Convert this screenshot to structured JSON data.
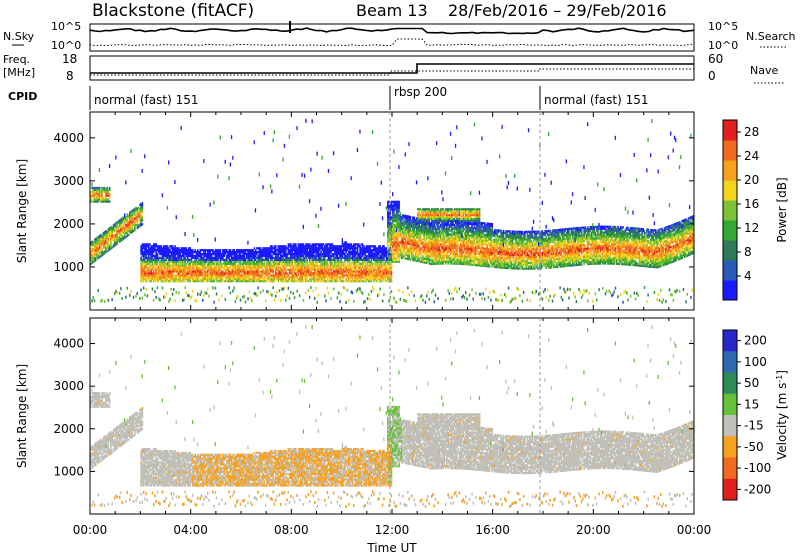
{
  "header": {
    "station": "Blackstone (fitACF)",
    "beam": "Beam 13",
    "date_range": "28/Feb/2016 – 29/Feb/2016"
  },
  "noise_panel": {
    "left_label": "N.Sky",
    "right_label": "N.Search",
    "left_ticks": [
      "10^5",
      "10^0"
    ],
    "right_ticks": [
      "10^5",
      "10^0"
    ]
  },
  "freq_panel": {
    "left_label_1": "Freq.",
    "left_label_2": "[MHz]",
    "right_label": "Nave",
    "left_ticks": [
      "18",
      "8"
    ],
    "right_ticks": [
      "60",
      "0"
    ]
  },
  "cpid_panel": {
    "label": "CPID",
    "segments": [
      {
        "start_h": 0,
        "name": "normal (fast) 151"
      },
      {
        "start_h": 12,
        "name": "rbsp 200"
      },
      {
        "start_h": 18,
        "name": "normal (fast) 151"
      }
    ]
  },
  "chart_data": [
    {
      "type": "heatmap",
      "title": "",
      "xlabel": "Time UT",
      "ylabel": "Slant Range [km]",
      "xlim": [
        0,
        24
      ],
      "ylim": [
        0,
        4600
      ],
      "x_ticks": [
        "00:00",
        "04:00",
        "08:00",
        "12:00",
        "16:00",
        "20:00",
        "00:00"
      ],
      "y_ticks": [
        1000,
        2000,
        3000,
        4000
      ],
      "colorbar": {
        "label": "Power [dB]",
        "ticks": [
          4,
          8,
          12,
          16,
          20,
          24,
          28
        ],
        "range": [
          0,
          30
        ],
        "colors": [
          "#1a1aff",
          "#2a5ab8",
          "#2f7a5a",
          "#33a833",
          "#7cc236",
          "#f2d41a",
          "#f7a11f",
          "#f06a1f",
          "#e11f1f"
        ]
      },
      "features": [
        {
          "name": "early-morning-rising-echo",
          "t": [
            0.0,
            2.0
          ],
          "range_km": [
            1300,
            2300
          ],
          "power_db": "8-24"
        },
        {
          "name": "morning-band",
          "t": [
            2.0,
            12.0
          ],
          "range_km": [
            600,
            1500
          ],
          "power_db": "4-24"
        },
        {
          "name": "post-12-band",
          "t": [
            12.0,
            24.0
          ],
          "range_km": [
            1100,
            2200
          ],
          "power_db": "8-28"
        }
      ]
    },
    {
      "type": "heatmap",
      "title": "",
      "xlabel": "Time UT",
      "ylabel": "Slant Range [km]",
      "xlim": [
        0,
        24
      ],
      "ylim": [
        0,
        4600
      ],
      "x_ticks": [
        "00:00",
        "04:00",
        "08:00",
        "12:00",
        "16:00",
        "20:00",
        "00:00"
      ],
      "y_ticks": [
        1000,
        2000,
        3000,
        4000
      ],
      "colorbar": {
        "label": "Velocity [m s^-1]",
        "ticks": [
          200,
          100,
          50,
          15,
          -15,
          -50,
          -100,
          -200
        ],
        "colors": [
          "#2828c8",
          "#2f6ab0",
          "#2f8a5a",
          "#66c23a",
          "#c0c0b8",
          "#f7a11f",
          "#f06a1f",
          "#e11f1f"
        ]
      },
      "features": [
        {
          "name": "ground-scatter",
          "t": [
            0.0,
            24.0
          ],
          "velocity": "-15 to 15"
        },
        {
          "name": "negative-velocity-patch",
          "t": [
            4.0,
            12.0
          ],
          "range_km": [
            700,
            1700
          ],
          "velocity": "-50 to -15"
        }
      ]
    }
  ]
}
